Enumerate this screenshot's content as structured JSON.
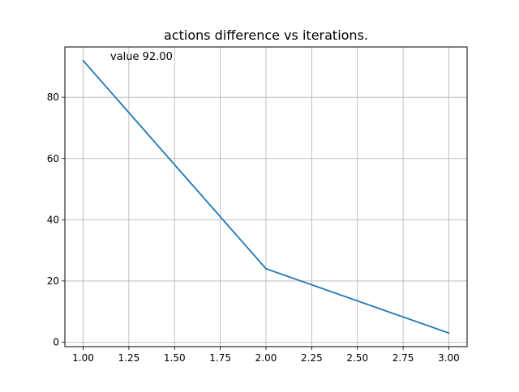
{
  "chart_data": {
    "type": "line",
    "title": "actions difference vs iterations.",
    "xlabel": "",
    "ylabel": "",
    "x": [
      1.0,
      2.0,
      3.0
    ],
    "series": [
      {
        "values": [
          92.0,
          24.0,
          3.0
        ]
      }
    ],
    "xlim": [
      0.9,
      3.1
    ],
    "ylim": [
      -1.45,
      96.45
    ],
    "xticks": [
      1.0,
      1.25,
      1.5,
      1.75,
      2.0,
      2.25,
      2.5,
      2.75,
      3.0
    ],
    "xtick_labels": [
      "1.00",
      "1.25",
      "1.50",
      "1.75",
      "2.00",
      "2.25",
      "2.50",
      "2.75",
      "3.00"
    ],
    "yticks": [
      0,
      20,
      40,
      60,
      80
    ],
    "ytick_labels": [
      "0",
      "20",
      "40",
      "60",
      "80"
    ],
    "grid": true,
    "annotation": {
      "text": "value 92.00"
    },
    "colors": {
      "line": "#1f77b4",
      "grid": "#b0b0b0",
      "axes": "#000000",
      "text": "#000000"
    }
  }
}
